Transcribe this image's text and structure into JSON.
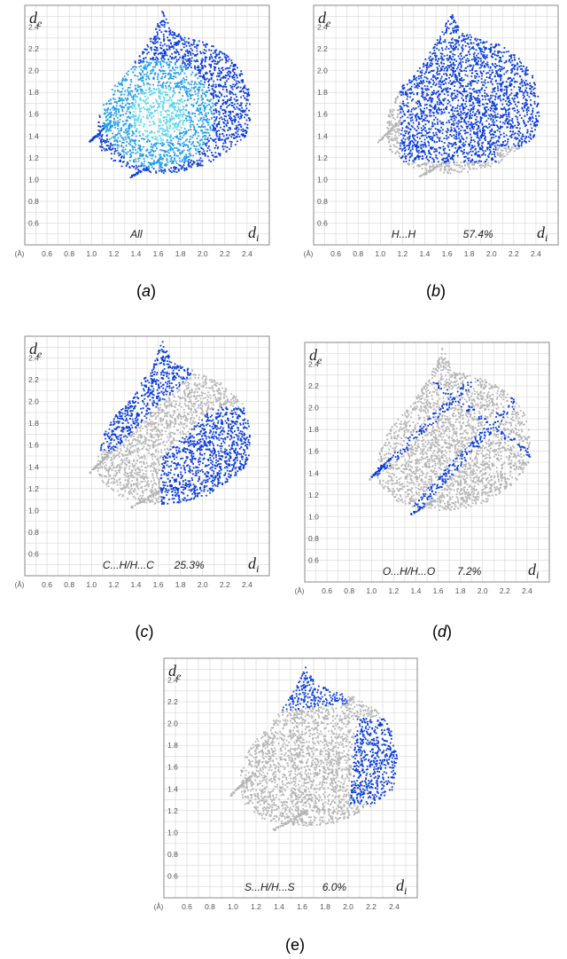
{
  "figure": {
    "ticks": [
      "0.6",
      "0.8",
      "1.0",
      "1.2",
      "1.4",
      "1.6",
      "1.8",
      "2.0",
      "2.2",
      "2.4"
    ],
    "unit_label": "(Å)",
    "y_axis_symbol": "d",
    "y_axis_subscript": "e",
    "x_axis_symbol": "d",
    "x_axis_subscript": "i",
    "colors": {
      "frame": "#888888",
      "grid": "#d6d6d6",
      "background_points": "#b4b4b4",
      "highlight_points": "#0a3cdc",
      "highlight_dense": "#1e9ef0",
      "highlight_core": "#52d6f0"
    }
  },
  "chart_data": [
    {
      "type": "scatter",
      "panel_label": "a",
      "interaction": "All",
      "percent": "",
      "xlabel": "d_i",
      "ylabel": "d_e",
      "xlim": [
        0.4,
        2.6
      ],
      "ylim": [
        0.4,
        2.6
      ],
      "tip_value": [
        1.63,
        2.55
      ]
    },
    {
      "type": "scatter",
      "panel_label": "b",
      "interaction": "H...H",
      "percent": "57.4%",
      "xlabel": "d_i",
      "ylabel": "d_e",
      "xlim": [
        0.4,
        2.6
      ],
      "ylim": [
        0.4,
        2.6
      ],
      "tip_value": [
        1.63,
        2.55
      ]
    },
    {
      "type": "scatter",
      "panel_label": "c",
      "interaction": "C...H/H...C",
      "percent": "25.3%",
      "xlabel": "d_i",
      "ylabel": "d_e",
      "xlim": [
        0.4,
        2.6
      ],
      "ylim": [
        0.4,
        2.6
      ],
      "wing_tips": [
        [
          1.06,
          1.66
        ],
        [
          1.65,
          1.08
        ]
      ]
    },
    {
      "type": "scatter",
      "panel_label": "d",
      "interaction": "O...H/H...O",
      "percent": "7.2%",
      "xlabel": "d_i",
      "ylabel": "d_e",
      "xlim": [
        0.4,
        2.6
      ],
      "ylim": [
        0.4,
        2.6
      ],
      "spike_tips": [
        [
          1.02,
          1.36
        ],
        [
          1.35,
          1.02
        ]
      ]
    },
    {
      "type": "scatter",
      "panel_label": "e",
      "interaction": "S...H/H...S",
      "percent": "6.0%",
      "xlabel": "d_i",
      "ylabel": "d_e",
      "xlim": [
        0.4,
        2.6
      ],
      "ylim": [
        0.4,
        2.6
      ],
      "wing_tips": [
        [
          1.3,
          2.1
        ],
        [
          2.0,
          1.26
        ]
      ]
    }
  ]
}
